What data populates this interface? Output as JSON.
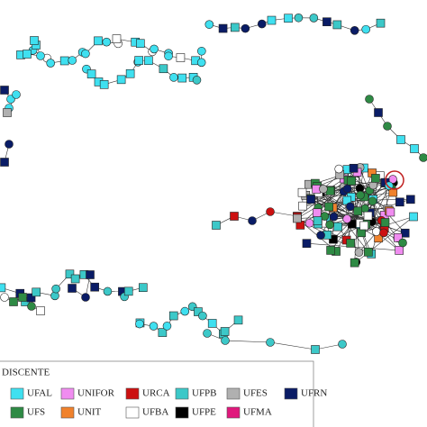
{
  "legend": {
    "title": "DISCENTE",
    "items": [
      {
        "name": "UFAL",
        "color": "#3fe0f0"
      },
      {
        "name": "UNIFOR",
        "color": "#f08cf0"
      },
      {
        "name": "URCA",
        "color": "#cc1010"
      },
      {
        "name": "UFPB",
        "color": "#3cc8c8"
      },
      {
        "name": "UFES",
        "color": "#b0b0b0"
      },
      {
        "name": "UFRN",
        "color": "#0a1c66"
      },
      {
        "name": "UFS",
        "color": "#2e8a44"
      },
      {
        "name": "UNIT",
        "color": "#f0822c"
      },
      {
        "name": "UFBA",
        "color": "#ffffff"
      },
      {
        "name": "UFPE",
        "color": "#000000"
      },
      {
        "name": "UFMA",
        "color": "#e0187c"
      }
    ]
  }
}
